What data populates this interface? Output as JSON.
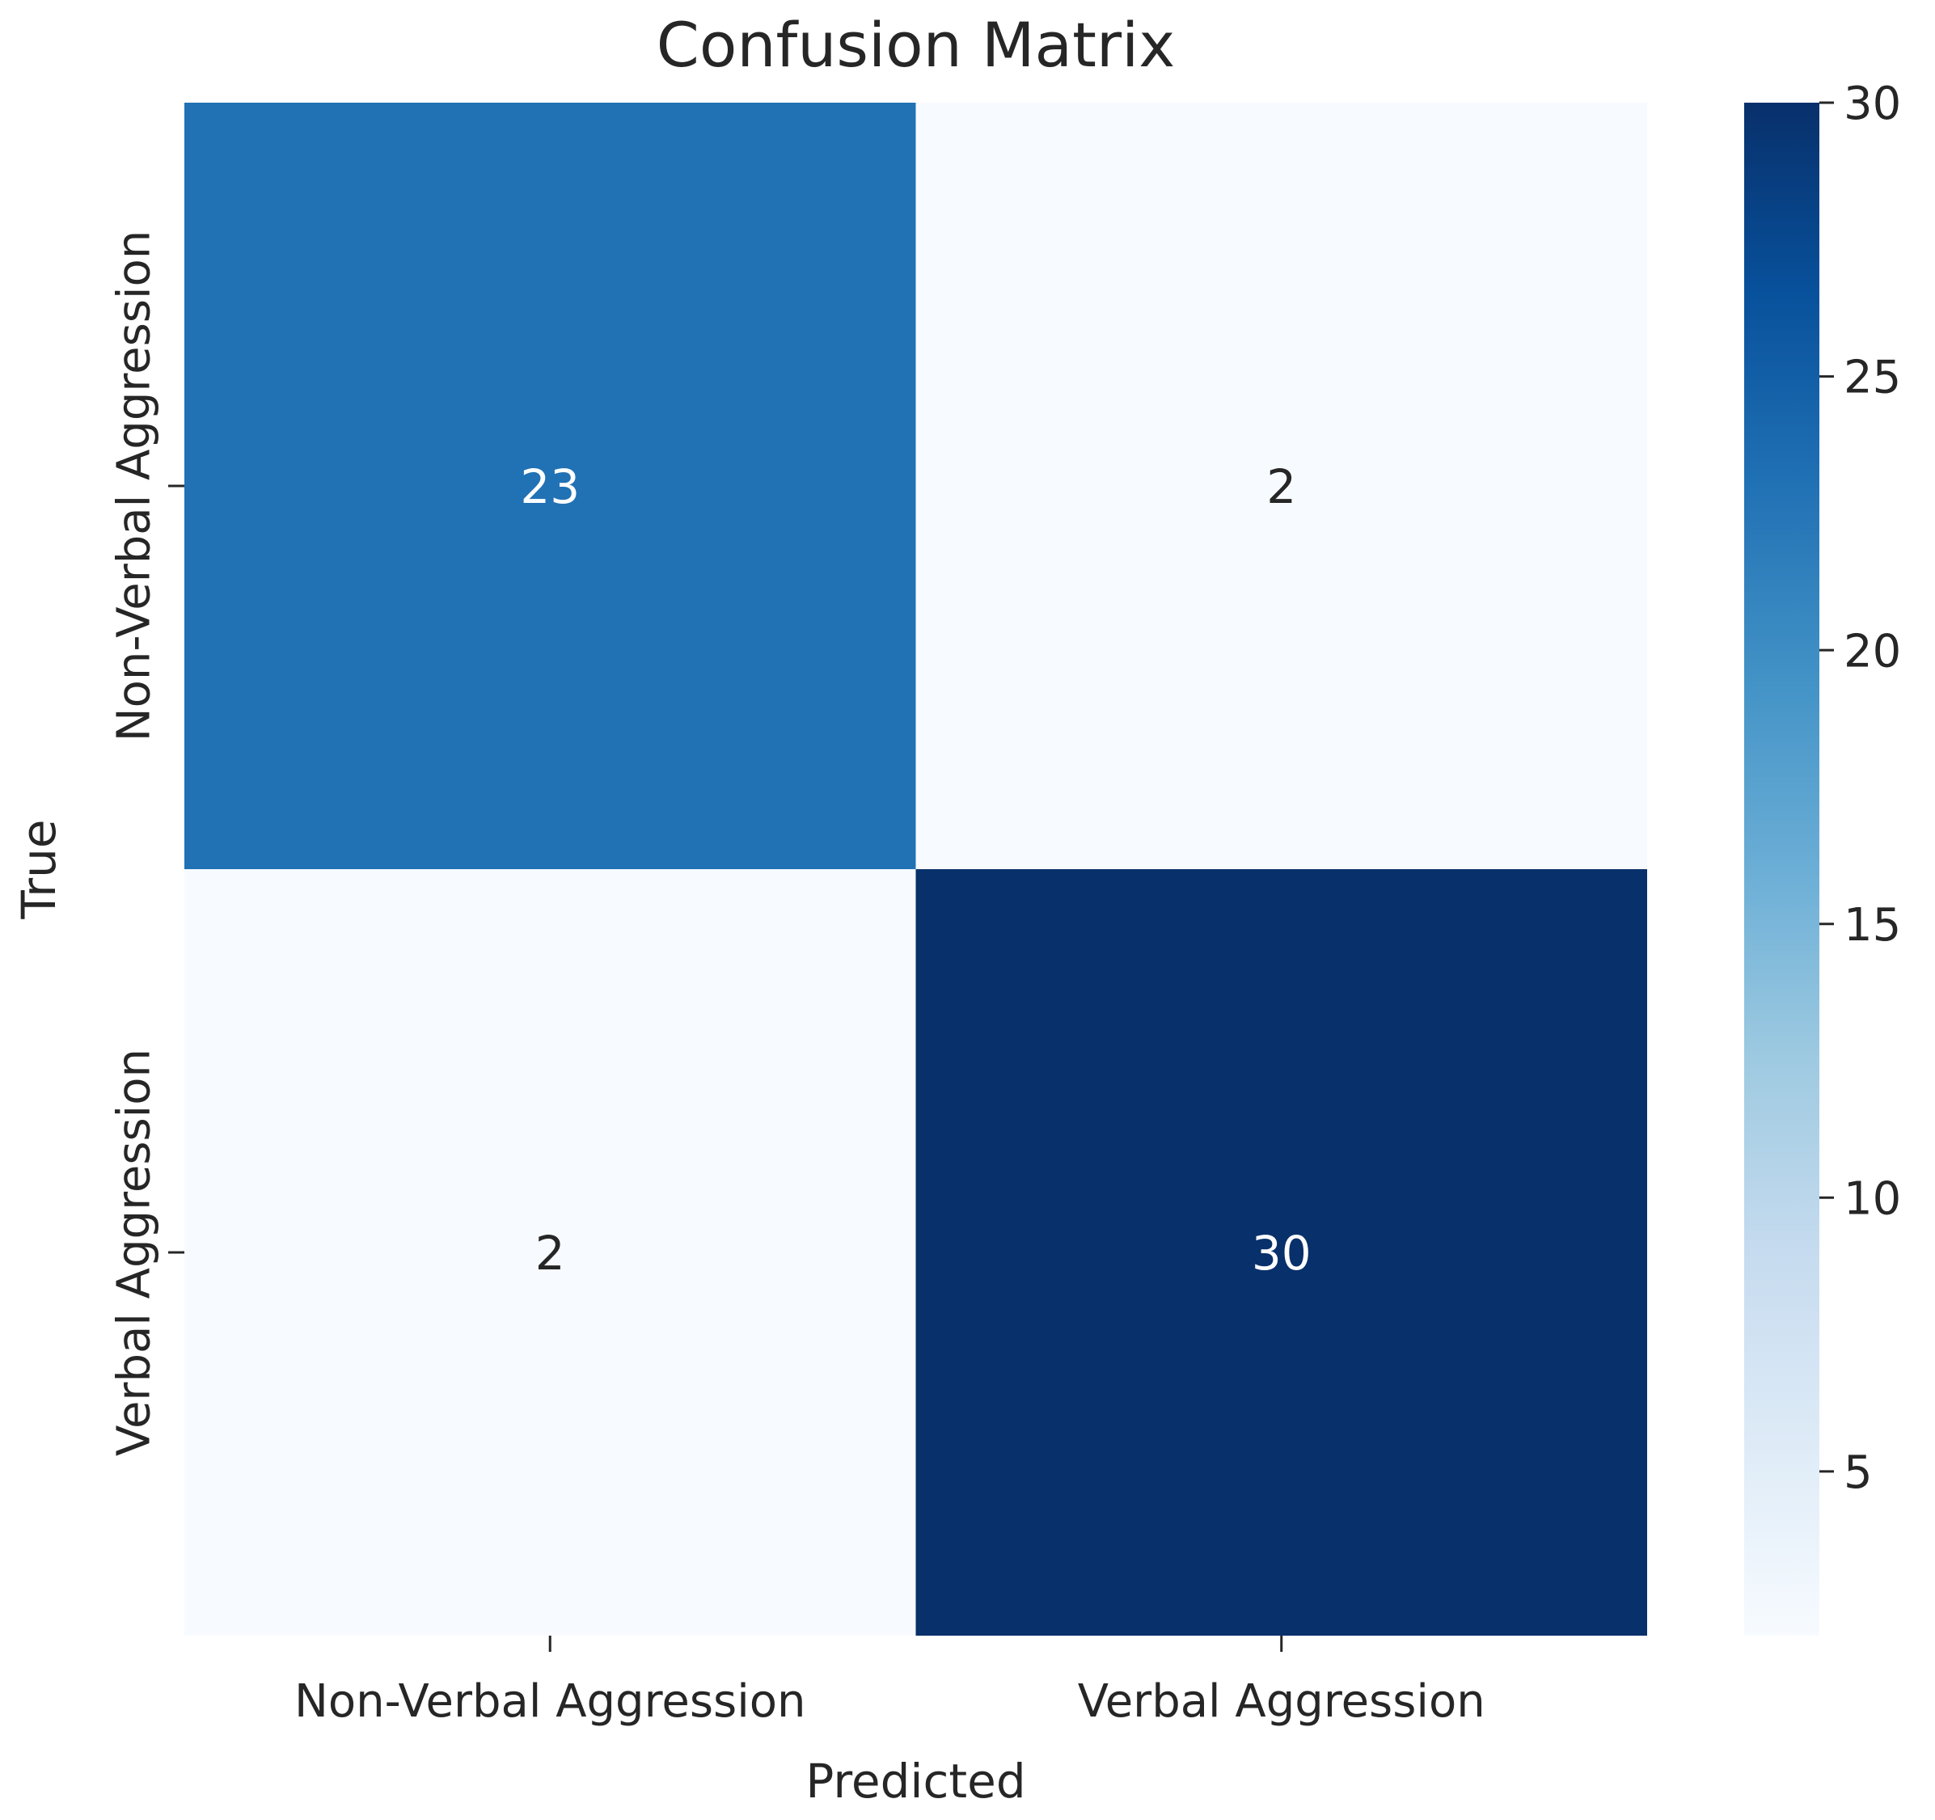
{
  "chart_data": {
    "type": "heatmap",
    "title": "Confusion Matrix",
    "xlabel": "Predicted",
    "ylabel": "True",
    "x_categories": [
      "Non-Verbal Aggression",
      "Verbal Aggression"
    ],
    "y_categories": [
      "Non-Verbal Aggression",
      "Verbal Aggression"
    ],
    "values": [
      [
        23,
        2
      ],
      [
        2,
        30
      ]
    ],
    "colormap": "Blues",
    "colorbar": {
      "min": 2,
      "max": 30,
      "ticks": [
        5,
        10,
        15,
        20,
        25,
        30
      ],
      "colors": [
        "#f7fbff",
        "#deebf7",
        "#c6dbef",
        "#9ecae1",
        "#6baed6",
        "#4292c6",
        "#2171b5",
        "#08519c",
        "#08306b"
      ]
    },
    "annotation_colors": {
      "dark": "#262626",
      "light": "#ffffff"
    }
  }
}
